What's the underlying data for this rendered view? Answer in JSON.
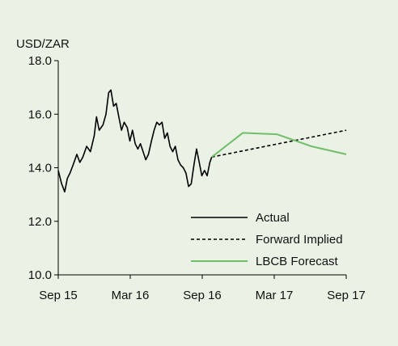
{
  "chart_data": {
    "type": "line",
    "ylabel": "USD/ZAR",
    "ylim": [
      10.0,
      18.0
    ],
    "y_ticks": [
      "10.0",
      "12.0",
      "14.0",
      "16.0",
      "18.0"
    ],
    "x_ticks": [
      "Sep 15",
      "Mar 16",
      "Sep 16",
      "Mar 17",
      "Sep 17"
    ],
    "legend_position": "bottom-right",
    "grid": false,
    "series": [
      {
        "name": "Actual",
        "style": "solid",
        "color": "#000000",
        "points": [
          [
            "2015-09-01",
            13.9
          ],
          [
            "2015-09-10",
            13.4
          ],
          [
            "2015-09-18",
            13.1
          ],
          [
            "2015-09-25",
            13.6
          ],
          [
            "2015-10-02",
            13.8
          ],
          [
            "2015-10-10",
            14.1
          ],
          [
            "2015-10-20",
            14.5
          ],
          [
            "2015-10-28",
            14.2
          ],
          [
            "2015-11-05",
            14.4
          ],
          [
            "2015-11-15",
            14.8
          ],
          [
            "2015-11-25",
            14.6
          ],
          [
            "2015-12-05",
            15.2
          ],
          [
            "2015-12-11",
            15.9
          ],
          [
            "2015-12-18",
            15.4
          ],
          [
            "2015-12-28",
            15.6
          ],
          [
            "2016-01-05",
            16.0
          ],
          [
            "2016-01-12",
            16.8
          ],
          [
            "2016-01-18",
            16.9
          ],
          [
            "2016-01-25",
            16.3
          ],
          [
            "2016-02-01",
            16.4
          ],
          [
            "2016-02-08",
            15.9
          ],
          [
            "2016-02-15",
            15.4
          ],
          [
            "2016-02-22",
            15.7
          ],
          [
            "2016-03-01",
            15.5
          ],
          [
            "2016-03-08",
            15.0
          ],
          [
            "2016-03-15",
            15.4
          ],
          [
            "2016-03-22",
            14.9
          ],
          [
            "2016-03-29",
            14.7
          ],
          [
            "2016-04-05",
            14.9
          ],
          [
            "2016-04-12",
            14.6
          ],
          [
            "2016-04-19",
            14.3
          ],
          [
            "2016-04-26",
            14.5
          ],
          [
            "2016-05-04",
            15.0
          ],
          [
            "2016-05-11",
            15.4
          ],
          [
            "2016-05-18",
            15.7
          ],
          [
            "2016-05-25",
            15.6
          ],
          [
            "2016-06-01",
            15.7
          ],
          [
            "2016-06-08",
            15.1
          ],
          [
            "2016-06-15",
            15.3
          ],
          [
            "2016-06-22",
            14.8
          ],
          [
            "2016-06-29",
            14.6
          ],
          [
            "2016-07-06",
            14.8
          ],
          [
            "2016-07-13",
            14.3
          ],
          [
            "2016-07-20",
            14.1
          ],
          [
            "2016-07-27",
            14.0
          ],
          [
            "2016-08-03",
            13.8
          ],
          [
            "2016-08-10",
            13.3
          ],
          [
            "2016-08-17",
            13.4
          ],
          [
            "2016-08-24",
            14.1
          ],
          [
            "2016-08-31",
            14.7
          ],
          [
            "2016-09-07",
            14.2
          ],
          [
            "2016-09-14",
            13.7
          ],
          [
            "2016-09-21",
            13.9
          ],
          [
            "2016-09-28",
            13.7
          ],
          [
            "2016-10-05",
            14.2
          ],
          [
            "2016-10-10",
            14.4
          ]
        ]
      },
      {
        "name": "Forward Implied",
        "style": "dashed",
        "color": "#000000",
        "points": [
          [
            "2016-10-10",
            14.4
          ],
          [
            "2017-09-30",
            15.4
          ]
        ]
      },
      {
        "name": "LBCB Forecast",
        "style": "solid",
        "color": "#72bd6a",
        "points": [
          [
            "2016-10-10",
            14.4
          ],
          [
            "2016-12-31",
            15.3
          ],
          [
            "2017-03-31",
            15.25
          ],
          [
            "2017-06-30",
            14.8
          ],
          [
            "2017-09-30",
            14.5
          ]
        ]
      }
    ]
  }
}
